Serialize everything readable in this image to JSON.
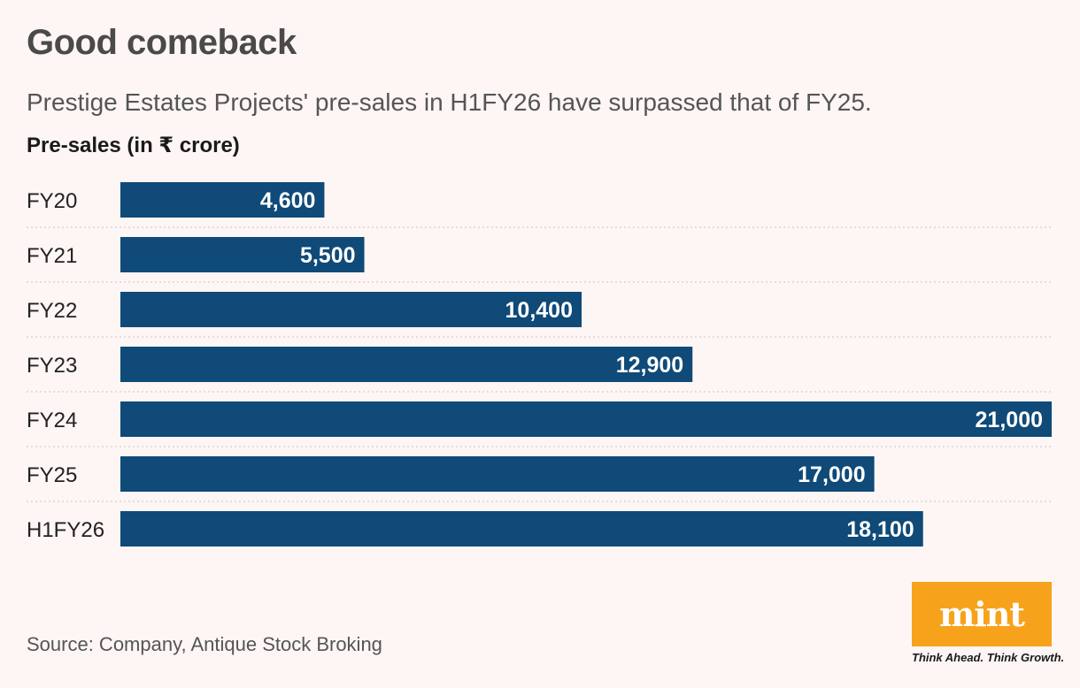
{
  "header": {
    "title": "Good comeback",
    "subtitle": "Prestige Estates Projects' pre-sales in H1FY26 have surpassed that of FY25.",
    "unit_label": "Pre-sales (in ₹ crore)"
  },
  "footer": {
    "source": "Source: Company, Antique Stock Broking",
    "logo_text": "mint",
    "tagline": "Think Ahead. Think Growth."
  },
  "colors": {
    "bar": "#0f4a78",
    "bar_label": "#ffffff",
    "gridline": "#c9c4c2",
    "background": "#fdf6f4",
    "logo_bg": "#f7a21b"
  },
  "chart_data": {
    "type": "bar",
    "orientation": "horizontal",
    "title": "Good comeback",
    "subtitle": "Prestige Estates Projects' pre-sales in H1FY26 have surpassed that of FY25.",
    "ylabel": "Pre-sales (in ₹ crore)",
    "categories": [
      "FY20",
      "FY21",
      "FY22",
      "FY23",
      "FY24",
      "FY25",
      "H1FY26"
    ],
    "values": [
      4600,
      5500,
      10400,
      12900,
      21000,
      17000,
      18100
    ],
    "value_labels": [
      "4,600",
      "5,500",
      "10,400",
      "12,900",
      "21,000",
      "17,000",
      "18,100"
    ],
    "xlim": [
      0,
      21000
    ],
    "grid": true
  }
}
